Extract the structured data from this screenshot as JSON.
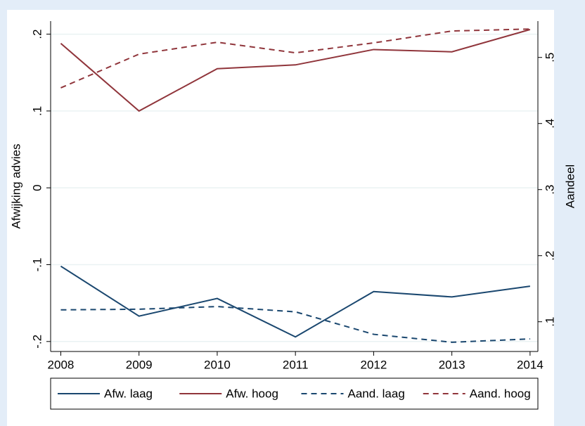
{
  "chart_data": {
    "type": "line",
    "x": [
      2008,
      2009,
      2010,
      2011,
      2012,
      2013,
      2014
    ],
    "xlim": [
      2007.87,
      2014.1
    ],
    "xticks": [
      2008,
      2009,
      2010,
      2011,
      2012,
      2013,
      2014
    ],
    "ylabel": "Afwijking advies",
    "y2label": "Aandeel",
    "ylim": [
      -0.213,
      0.217
    ],
    "yticks": [
      {
        "value": -0.2,
        "label": "-.2"
      },
      {
        "value": -0.1,
        "label": "-.1"
      },
      0,
      {
        "value": 0.1,
        "label": ".1"
      },
      {
        "value": 0.2,
        "label": ".2"
      }
    ],
    "y2lim": [
      0.055,
      0.555
    ],
    "y2ticks": [
      {
        "value": 0.1,
        "label": ".1"
      },
      {
        "value": 0.2,
        "label": ".2"
      },
      {
        "value": 0.3,
        "label": ".3"
      },
      {
        "value": 0.4,
        "label": ".4"
      },
      {
        "value": 0.5,
        "label": ".5"
      }
    ],
    "grid": true,
    "legend": "bottom",
    "series": [
      {
        "name": "Afw. laag",
        "color": "#1a476f",
        "dash": false,
        "values": [
          -0.102,
          -0.167,
          -0.144,
          -0.194,
          -0.135,
          -0.142,
          -0.128
        ]
      },
      {
        "name": "Afw. hoog",
        "color": "#90353b",
        "dash": false,
        "values": [
          0.188,
          0.1,
          0.155,
          0.16,
          0.18,
          0.177,
          0.206
        ]
      },
      {
        "name": "Aand. laag",
        "color": "#1a476f",
        "dash": true,
        "axis": "y2",
        "values": [
          0.118,
          0.119,
          0.123,
          0.115,
          0.081,
          0.069,
          0.074
        ]
      },
      {
        "name": "Aand. hoog",
        "color": "#90353b",
        "dash": true,
        "axis": "y2",
        "values": [
          0.454,
          0.505,
          0.523,
          0.507,
          0.522,
          0.54,
          0.543
        ]
      }
    ]
  }
}
